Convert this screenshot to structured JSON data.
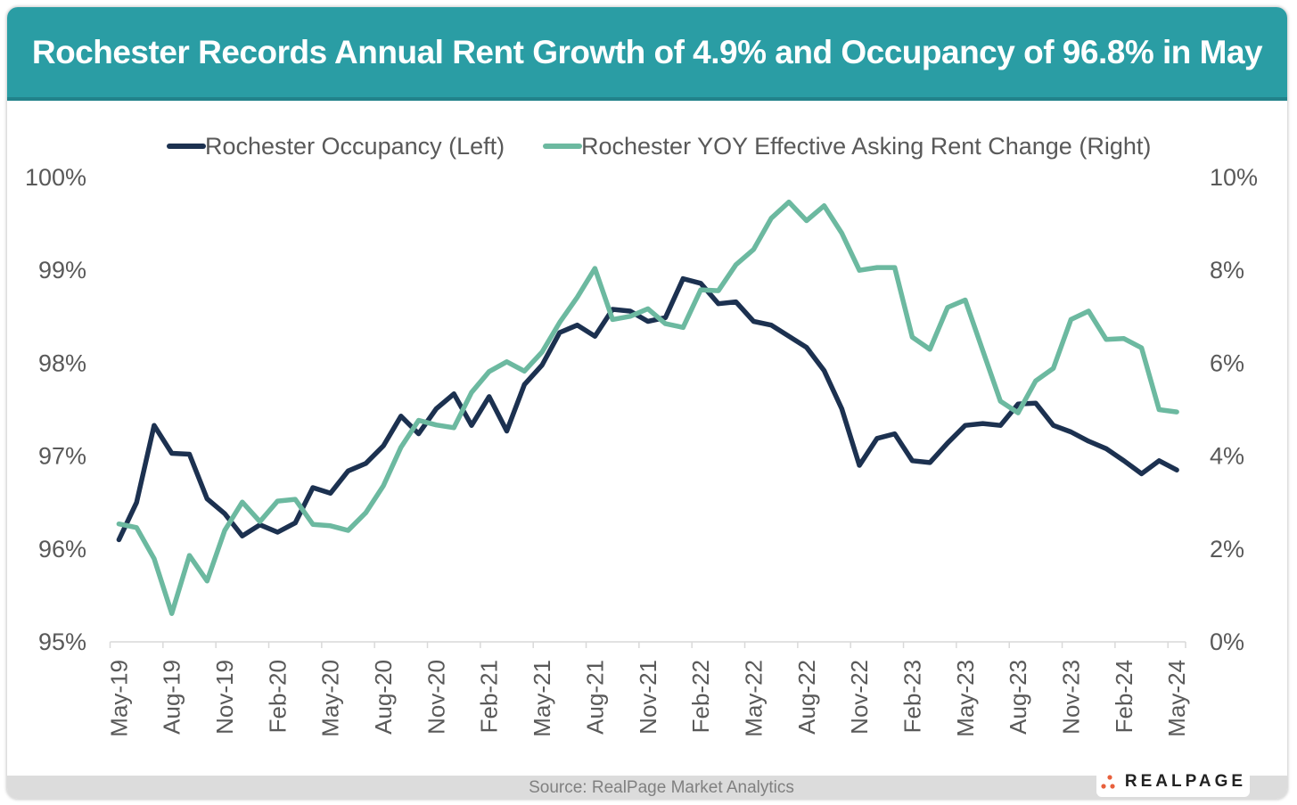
{
  "header": {
    "title": "Rochester Records Annual Rent Growth of 4.9% and Occupancy of 96.8% in May"
  },
  "footer": {
    "source": "Source: RealPage Market Analytics",
    "logo": "REALPAGE"
  },
  "chart_data": {
    "type": "line",
    "title": "Rochester Records Annual Rent Growth of 4.9% and Occupancy of 96.8% in May",
    "legend_position": "top",
    "grid": false,
    "x": [
      "May-19",
      "Jun-19",
      "Jul-19",
      "Aug-19",
      "Sep-19",
      "Oct-19",
      "Nov-19",
      "Dec-19",
      "Jan-20",
      "Feb-20",
      "Mar-20",
      "Apr-20",
      "May-20",
      "Jun-20",
      "Jul-20",
      "Aug-20",
      "Sep-20",
      "Oct-20",
      "Nov-20",
      "Dec-20",
      "Jan-21",
      "Feb-21",
      "Mar-21",
      "Apr-21",
      "May-21",
      "Jun-21",
      "Jul-21",
      "Aug-21",
      "Sep-21",
      "Oct-21",
      "Nov-21",
      "Dec-21",
      "Jan-22",
      "Feb-22",
      "Mar-22",
      "Apr-22",
      "May-22",
      "Jun-22",
      "Jul-22",
      "Aug-22",
      "Sep-22",
      "Oct-22",
      "Nov-22",
      "Dec-22",
      "Jan-23",
      "Feb-23",
      "Mar-23",
      "Apr-23",
      "May-23",
      "Jun-23",
      "Jul-23",
      "Aug-23",
      "Sep-23",
      "Oct-23",
      "Nov-23",
      "Dec-23",
      "Jan-24",
      "Feb-24",
      "Mar-24",
      "Apr-24",
      "May-24"
    ],
    "x_tick_labels": [
      "May-19",
      "Aug-19",
      "Nov-19",
      "Feb-20",
      "May-20",
      "Aug-20",
      "Nov-20",
      "Feb-21",
      "May-21",
      "Aug-21",
      "Nov-21",
      "Feb-22",
      "May-22",
      "Aug-22",
      "Nov-22",
      "Feb-23",
      "May-23",
      "Aug-23",
      "Nov-23",
      "Feb-24",
      "May-24"
    ],
    "y_left": {
      "range": [
        95,
        100
      ],
      "ticks": [
        "95%",
        "96%",
        "97%",
        "98%",
        "99%",
        "100%"
      ]
    },
    "y_right": {
      "range": [
        0,
        10
      ],
      "ticks": [
        "0%",
        "2%",
        "4%",
        "6%",
        "8%",
        "10%"
      ]
    },
    "series": [
      {
        "name": "Rochester Occupancy (Left)",
        "axis": "left",
        "color": "#1c3150",
        "values": [
          96.1,
          96.5,
          97.33,
          97.03,
          97.02,
          96.54,
          96.38,
          96.14,
          96.26,
          96.18,
          96.28,
          96.66,
          96.6,
          96.84,
          96.92,
          97.11,
          97.43,
          97.24,
          97.51,
          97.67,
          97.33,
          97.64,
          97.27,
          97.77,
          97.98,
          98.33,
          98.41,
          98.29,
          98.58,
          98.56,
          98.45,
          98.49,
          98.91,
          98.86,
          98.64,
          98.66,
          98.45,
          98.41,
          98.29,
          98.17,
          97.92,
          97.51,
          96.9,
          97.19,
          97.24,
          96.95,
          96.93,
          97.14,
          97.33,
          97.35,
          97.33,
          97.56,
          97.57,
          97.33,
          97.26,
          97.16,
          97.08,
          96.95,
          96.81,
          96.95,
          96.85
        ]
      },
      {
        "name": "Rochester YOY Effective Asking Rent Change (Right)",
        "axis": "right",
        "color": "#6cb9a0",
        "values": [
          2.54,
          2.46,
          1.79,
          0.61,
          1.86,
          1.31,
          2.4,
          3.01,
          2.59,
          3.03,
          3.07,
          2.53,
          2.5,
          2.4,
          2.78,
          3.36,
          4.19,
          4.77,
          4.67,
          4.61,
          5.37,
          5.82,
          6.03,
          5.83,
          6.24,
          6.88,
          7.42,
          8.04,
          6.94,
          7.01,
          7.17,
          6.85,
          6.77,
          7.58,
          7.56,
          8.12,
          8.45,
          9.12,
          9.47,
          9.07,
          9.39,
          8.8,
          8.0,
          8.06,
          8.06,
          6.56,
          6.3,
          7.2,
          7.36,
          6.27,
          5.18,
          4.93,
          5.62,
          5.89,
          6.94,
          7.12,
          6.51,
          6.53,
          6.33,
          5.0,
          4.95
        ]
      }
    ]
  }
}
